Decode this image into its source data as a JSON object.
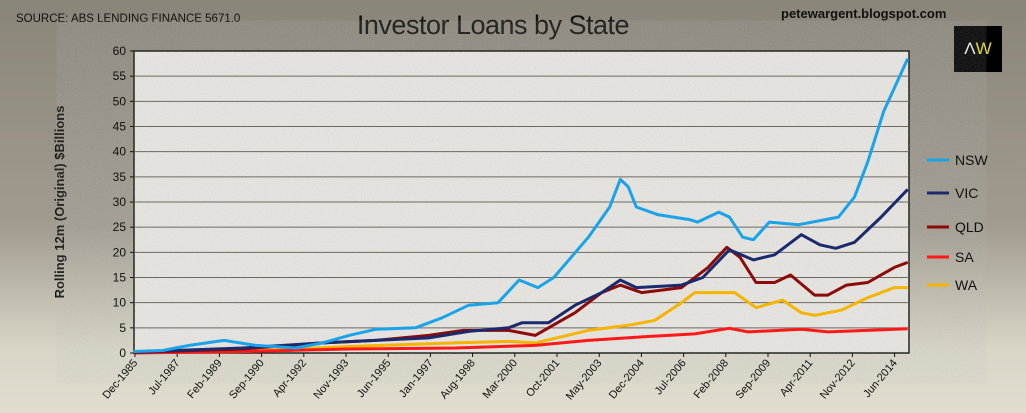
{
  "source": "SOURCE: ABS LENDING FINANCE 5671.0",
  "blog": "petewargent.blogspot.com",
  "logo": {
    "a": "Λ",
    "w": "W"
  },
  "chart_data": {
    "type": "line",
    "title": "Investor Loans by State",
    "xlabel": "",
    "ylabel": "Rolling 12m (Original) $Billions",
    "ylim": [
      0,
      60
    ],
    "yticks": [
      0,
      5,
      10,
      15,
      20,
      25,
      30,
      35,
      40,
      45,
      50,
      55,
      60
    ],
    "xlim": [
      1985.92,
      2015.05
    ],
    "xtick_labels": [
      "Dec-1985",
      "Jul-1987",
      "Feb-1989",
      "Sep-1990",
      "Apr-1992",
      "Nov-1993",
      "Jun-1995",
      "Jan-1997",
      "Aug-1998",
      "Mar-2000",
      "Oct-2001",
      "May-2003",
      "Dec-2004",
      "Jul-2006",
      "Feb-2008",
      "Sep-2009",
      "Apr-2011",
      "Nov-2012",
      "Jun-2014"
    ],
    "grid": true,
    "legend": "right",
    "series": [
      {
        "name": "NSW",
        "color": "#1aa3e8",
        "points": [
          [
            1985.9,
            0.3
          ],
          [
            1987,
            0.5
          ],
          [
            1988,
            1.5
          ],
          [
            1989.3,
            2.5
          ],
          [
            1990.5,
            1.5
          ],
          [
            1992,
            1
          ],
          [
            1993,
            2
          ],
          [
            1994,
            3.5
          ],
          [
            1995,
            4.7
          ],
          [
            1996.5,
            5
          ],
          [
            1997.5,
            7
          ],
          [
            1998.5,
            9.5
          ],
          [
            1999.6,
            10
          ],
          [
            2000.4,
            14.5
          ],
          [
            2001.1,
            13
          ],
          [
            2001.7,
            15
          ],
          [
            2003,
            23
          ],
          [
            2003.8,
            29
          ],
          [
            2004.2,
            34.5
          ],
          [
            2004.5,
            33
          ],
          [
            2004.8,
            29
          ],
          [
            2005.6,
            27.5
          ],
          [
            2006.8,
            26.5
          ],
          [
            2007.1,
            26
          ],
          [
            2007.9,
            28
          ],
          [
            2008.3,
            27
          ],
          [
            2008.8,
            23
          ],
          [
            2009.2,
            22.5
          ],
          [
            2009.8,
            26
          ],
          [
            2010.9,
            25.5
          ],
          [
            2012.4,
            27
          ],
          [
            2013,
            31
          ],
          [
            2013.5,
            38
          ],
          [
            2014.1,
            48
          ],
          [
            2014.7,
            55
          ],
          [
            2015,
            58.5
          ]
        ]
      },
      {
        "name": "VIC",
        "color": "#1a2a6c",
        "points": [
          [
            1985.9,
            0.2
          ],
          [
            1990,
            1
          ],
          [
            1993,
            2
          ],
          [
            1995,
            2.5
          ],
          [
            1997,
            3
          ],
          [
            1998.5,
            4.3
          ],
          [
            2000,
            5
          ],
          [
            2000.5,
            6
          ],
          [
            2001.5,
            6
          ],
          [
            2002.5,
            9.5
          ],
          [
            2003.5,
            12
          ],
          [
            2004.2,
            14.5
          ],
          [
            2004.8,
            13
          ],
          [
            2006.5,
            13.5
          ],
          [
            2007.3,
            15
          ],
          [
            2008.3,
            20.5
          ],
          [
            2009.2,
            18.5
          ],
          [
            2010,
            19.5
          ],
          [
            2011,
            23.5
          ],
          [
            2011.7,
            21.5
          ],
          [
            2012.3,
            20.8
          ],
          [
            2013,
            22
          ],
          [
            2014,
            27
          ],
          [
            2015,
            32.5
          ]
        ]
      },
      {
        "name": "QLD",
        "color": "#8b0a0a",
        "points": [
          [
            1985.9,
            0.1
          ],
          [
            1990,
            0.8
          ],
          [
            1993,
            2
          ],
          [
            1995,
            2.5
          ],
          [
            1997,
            3.5
          ],
          [
            1998.3,
            4.5
          ],
          [
            2000,
            4.5
          ],
          [
            2001,
            3.5
          ],
          [
            2002.5,
            8
          ],
          [
            2003.5,
            12
          ],
          [
            2004.2,
            13.5
          ],
          [
            2005,
            12
          ],
          [
            2006.5,
            13
          ],
          [
            2007.5,
            17
          ],
          [
            2008.2,
            21
          ],
          [
            2008.7,
            19
          ],
          [
            2009.3,
            14
          ],
          [
            2010,
            14
          ],
          [
            2010.6,
            15.5
          ],
          [
            2011.5,
            11.5
          ],
          [
            2012,
            11.5
          ],
          [
            2012.7,
            13.5
          ],
          [
            2013.5,
            14
          ],
          [
            2014.5,
            17
          ],
          [
            2015,
            18
          ]
        ]
      },
      {
        "name": "SA",
        "color": "#ff1a1a",
        "points": [
          [
            1985.9,
            0
          ],
          [
            1990,
            0.3
          ],
          [
            1994,
            0.8
          ],
          [
            1998,
            1
          ],
          [
            2001,
            1.5
          ],
          [
            2003,
            2.5
          ],
          [
            2005,
            3.2
          ],
          [
            2007,
            3.8
          ],
          [
            2008.3,
            4.9
          ],
          [
            2009,
            4.2
          ],
          [
            2011,
            4.7
          ],
          [
            2012,
            4.2
          ],
          [
            2015,
            4.8
          ]
        ]
      },
      {
        "name": "WA",
        "color": "#f5b400",
        "points": [
          [
            1985.9,
            0.1
          ],
          [
            1990,
            0.3
          ],
          [
            1994,
            1.3
          ],
          [
            1998,
            2
          ],
          [
            2000,
            2.3
          ],
          [
            2001,
            2
          ],
          [
            2003,
            4.5
          ],
          [
            2004.5,
            5.5
          ],
          [
            2005.5,
            6.5
          ],
          [
            2006.5,
            10
          ],
          [
            2007,
            12
          ],
          [
            2008.5,
            12
          ],
          [
            2009.3,
            9
          ],
          [
            2010.3,
            10.5
          ],
          [
            2011,
            8
          ],
          [
            2011.5,
            7.5
          ],
          [
            2012.5,
            8.5
          ],
          [
            2013.5,
            11
          ],
          [
            2014.5,
            13
          ],
          [
            2015,
            13
          ]
        ]
      }
    ]
  }
}
